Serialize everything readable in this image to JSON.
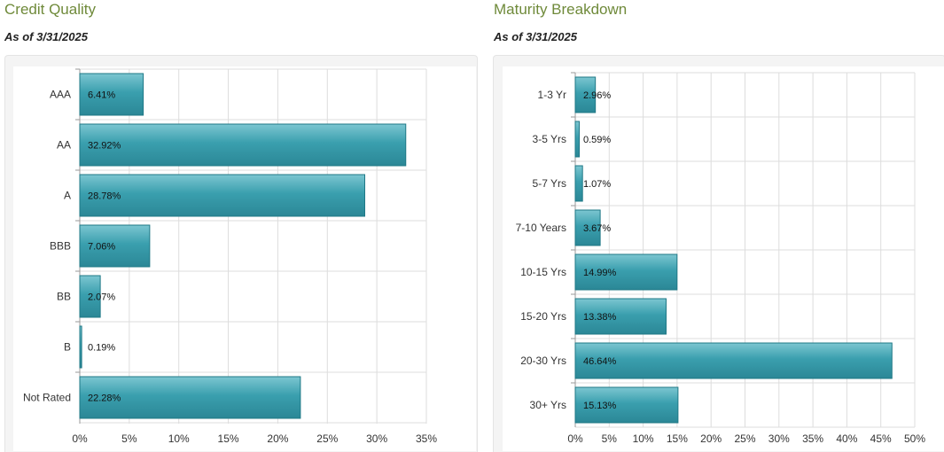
{
  "credit": {
    "title": "Credit Quality",
    "as_of": "As of 3/31/2025"
  },
  "maturity": {
    "title": "Maturity Breakdown",
    "as_of": "As of 3/31/2025"
  },
  "colors": {
    "bar": "#3a9fae",
    "bar_light": "#7cc6d1",
    "bar_edge": "#1f7886",
    "grid": "#dddddd",
    "title": "#6f8a3a"
  },
  "chart_data": [
    {
      "type": "bar",
      "orientation": "horizontal",
      "categories": [
        "AAA",
        "AA",
        "A",
        "BBB",
        "BB",
        "B",
        "Not Rated"
      ],
      "values": [
        6.41,
        32.92,
        28.78,
        7.06,
        2.07,
        0.19,
        22.28
      ],
      "value_labels": [
        "6.41%",
        "32.92%",
        "28.78%",
        "7.06%",
        "2.07%",
        "0.19%",
        "22.28%"
      ],
      "xlim": [
        0,
        35
      ],
      "xticks": [
        0,
        5,
        10,
        15,
        20,
        25,
        30,
        35
      ],
      "xtick_labels": [
        "0%",
        "5%",
        "10%",
        "15%",
        "20%",
        "25%",
        "30%",
        "35%"
      ],
      "grid": true
    },
    {
      "type": "bar",
      "orientation": "horizontal",
      "categories": [
        "1-3 Yr",
        "3-5 Yrs",
        "5-7 Yrs",
        "7-10 Years",
        "10-15 Yrs",
        "15-20 Yrs",
        "20-30 Yrs",
        "30+ Yrs"
      ],
      "values": [
        2.96,
        0.59,
        1.07,
        3.67,
        14.99,
        13.38,
        46.64,
        15.13
      ],
      "value_labels": [
        "2.96%",
        "0.59%",
        "1.07%",
        "3.67%",
        "14.99%",
        "13.38%",
        "46.64%",
        "15.13%"
      ],
      "xlim": [
        0,
        50
      ],
      "xticks": [
        0,
        5,
        10,
        15,
        20,
        25,
        30,
        35,
        40,
        45,
        50
      ],
      "xtick_labels": [
        "0%",
        "5%",
        "10%",
        "15%",
        "20%",
        "25%",
        "30%",
        "35%",
        "40%",
        "45%",
        "50%"
      ],
      "grid": true
    }
  ]
}
